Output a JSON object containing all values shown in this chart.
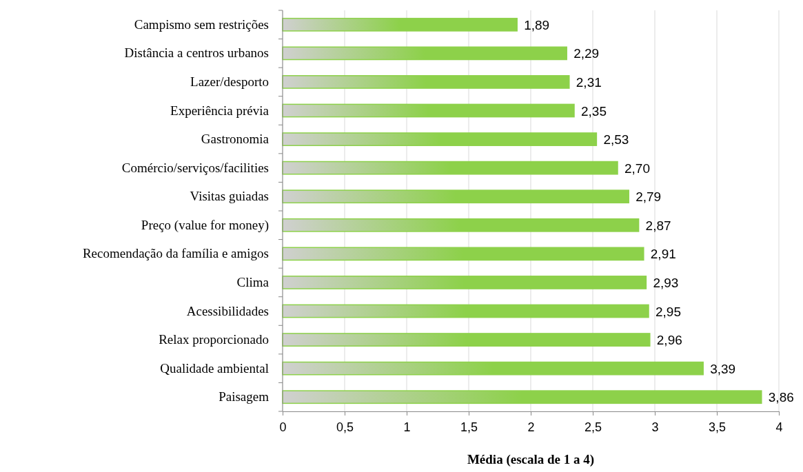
{
  "chart_data": {
    "type": "bar",
    "orientation": "horizontal",
    "xlabel": "Média (escala de 1 a 4)",
    "categories": [
      "Campismo sem restrições",
      "Distância a centros urbanos",
      "Lazer/desporto",
      "Experiência prévia",
      "Gastronomia",
      "Comércio/serviços/facilities",
      "Visitas guiadas",
      "Preço (value for money)",
      "Recomendação da família e amigos",
      "Clima",
      "Acessibilidades",
      "Relax proporcionado",
      "Qualidade ambiental",
      "Paisagem"
    ],
    "values": [
      1.89,
      2.29,
      2.31,
      2.35,
      2.53,
      2.7,
      2.79,
      2.87,
      2.91,
      2.93,
      2.95,
      2.96,
      3.39,
      3.86
    ],
    "value_labels": [
      "1,89",
      "2,29",
      "2,31",
      "2,35",
      "2,53",
      "2,70",
      "2,79",
      "2,87",
      "2,91",
      "2,93",
      "2,95",
      "2,96",
      "3,39",
      "3,86"
    ],
    "color": "#8dd14a",
    "xlim": [
      0,
      4
    ],
    "xticks": [
      0,
      {
        "value": 0.5,
        "label": "0,5"
      },
      1,
      {
        "value": 1.5,
        "label": "1,5"
      },
      2,
      {
        "value": 2.5,
        "label": "2,5"
      },
      3,
      {
        "value": 3.5,
        "label": "3,5"
      },
      4
    ],
    "grid": "x"
  }
}
